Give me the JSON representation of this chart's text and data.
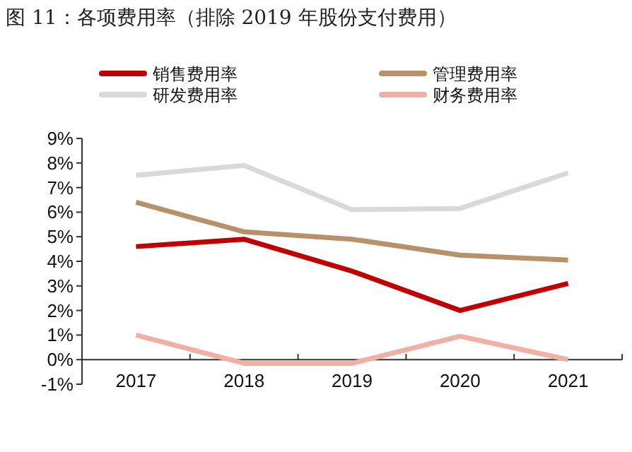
{
  "chart_data": {
    "type": "line",
    "title": "图 11：各项费用率（排除 2019 年股份支付费用）",
    "categories": [
      "2017",
      "2018",
      "2019",
      "2020",
      "2021"
    ],
    "series": [
      {
        "name": "销售费用率",
        "color": "#c00000",
        "values": [
          4.6,
          4.9,
          3.6,
          2.0,
          3.1
        ]
      },
      {
        "name": "管理费用率",
        "color": "#b8906a",
        "values": [
          6.4,
          5.2,
          4.9,
          4.25,
          4.05
        ]
      },
      {
        "name": "研发费用率",
        "color": "#d9d9d9",
        "values": [
          7.5,
          7.9,
          6.1,
          6.15,
          7.6
        ]
      },
      {
        "name": "财务费用率",
        "color": "#f0b0a4",
        "values": [
          1.0,
          -0.15,
          -0.15,
          0.95,
          0.0
        ]
      }
    ],
    "ylim": [
      -1,
      9
    ],
    "yticks": [
      {
        "value": -1,
        "label": "-1%"
      },
      {
        "value": 0,
        "label": "0%"
      },
      {
        "value": 1,
        "label": "1%"
      },
      {
        "value": 2,
        "label": "2%"
      },
      {
        "value": 3,
        "label": "3%"
      },
      {
        "value": 4,
        "label": "4%"
      },
      {
        "value": 5,
        "label": "5%"
      },
      {
        "value": 6,
        "label": "6%"
      },
      {
        "value": 7,
        "label": "7%"
      },
      {
        "value": 8,
        "label": "8%"
      },
      {
        "value": 9,
        "label": "9%"
      }
    ],
    "legend": "top"
  }
}
